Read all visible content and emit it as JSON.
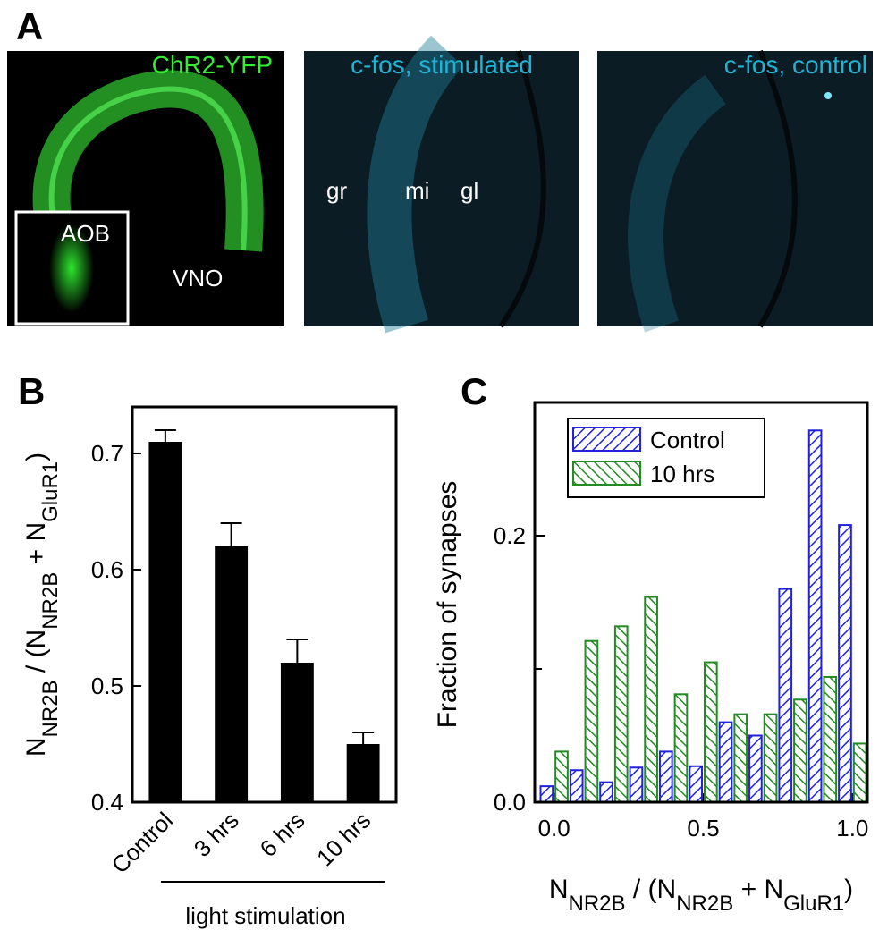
{
  "panel_a": {
    "panel": "A",
    "images": [
      {
        "title": "ChR2-YFP",
        "labels": [
          "AOB",
          "VNO"
        ]
      },
      {
        "title": "c-fos, stimulated",
        "labels": [
          "gr",
          "mi",
          "gl"
        ]
      },
      {
        "title": "c-fos, control"
      }
    ]
  },
  "chart_data": [
    {
      "type": "bar",
      "panel": "B",
      "ylabel": [
        "N",
        "NR2B",
        " / (N",
        "NR2B",
        " + N",
        "GluR1",
        ")"
      ],
      "categories": [
        "Control",
        "3 hrs",
        "6 hrs",
        "10 hrs"
      ],
      "values": [
        0.71,
        0.62,
        0.52,
        0.45
      ],
      "errors": [
        0.01,
        0.02,
        0.02,
        0.01
      ],
      "color": "#000000",
      "annotation": "light stimulation",
      "ylim": [
        0.4,
        0.74
      ],
      "yticks": [
        0.4,
        0.5,
        0.6,
        0.7
      ]
    },
    {
      "type": "histogram",
      "panel": "C",
      "ylabel": "Fraction of synapses",
      "xlabel": [
        "N",
        "NR2B",
        " / (N",
        "NR2B",
        " + N",
        "GluR1",
        ")"
      ],
      "bins": [
        -0.05,
        0.05,
        0.15,
        0.25,
        0.35,
        0.45,
        0.55,
        0.65,
        0.75,
        0.85,
        0.95,
        1.05
      ],
      "series": [
        {
          "name": "Control",
          "color": "#2222dd",
          "values": [
            0.012,
            0.024,
            0.015,
            0.026,
            0.038,
            0.027,
            0.06,
            0.05,
            0.16,
            0.279,
            0.208
          ]
        },
        {
          "name": "10 hrs",
          "color": "#228b22",
          "values": [
            0.038,
            0.121,
            0.132,
            0.154,
            0.081,
            0.105,
            0.066,
            0.066,
            0.077,
            0.094,
            0.044
          ]
        }
      ],
      "legend": "upper left",
      "xlim": [
        -0.065,
        1.05
      ],
      "xticks": [
        {
          "value": 0,
          "label": "0.0"
        },
        0.5,
        {
          "value": 1,
          "label": "1.0"
        }
      ],
      "ylim": [
        0,
        0.3
      ],
      "yticks": [
        {
          "value": 0,
          "label": "0.0"
        },
        0.2
      ],
      "yminor": [
        0.1
      ]
    }
  ]
}
